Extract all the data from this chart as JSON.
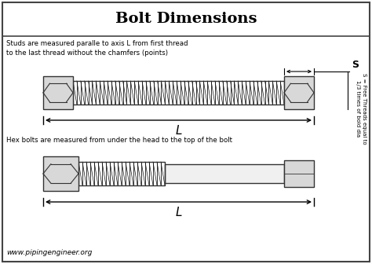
{
  "title": "Bolt Dimensions",
  "title_fontsize": 14,
  "background_color": "#ffffff",
  "border_color": "#444444",
  "text_color": "#000000",
  "stud_note": "Studs are measured paralle to axis L from first thread\nto the last thread without the chamfers (points)",
  "hex_note": "Hex bolts are measured from under the head to the top of the bolt",
  "side_note_line1": "S = Free Threads equal to",
  "side_note_line2": "1/3 times of bold dia",
  "side_label": "S",
  "dim_label": "L",
  "website": "www.pipingengineer.org",
  "thread_color": "#111111",
  "nut_fill": "#d8d8d8",
  "nut_stroke": "#333333",
  "shaft_fill": "#f0f0f0"
}
